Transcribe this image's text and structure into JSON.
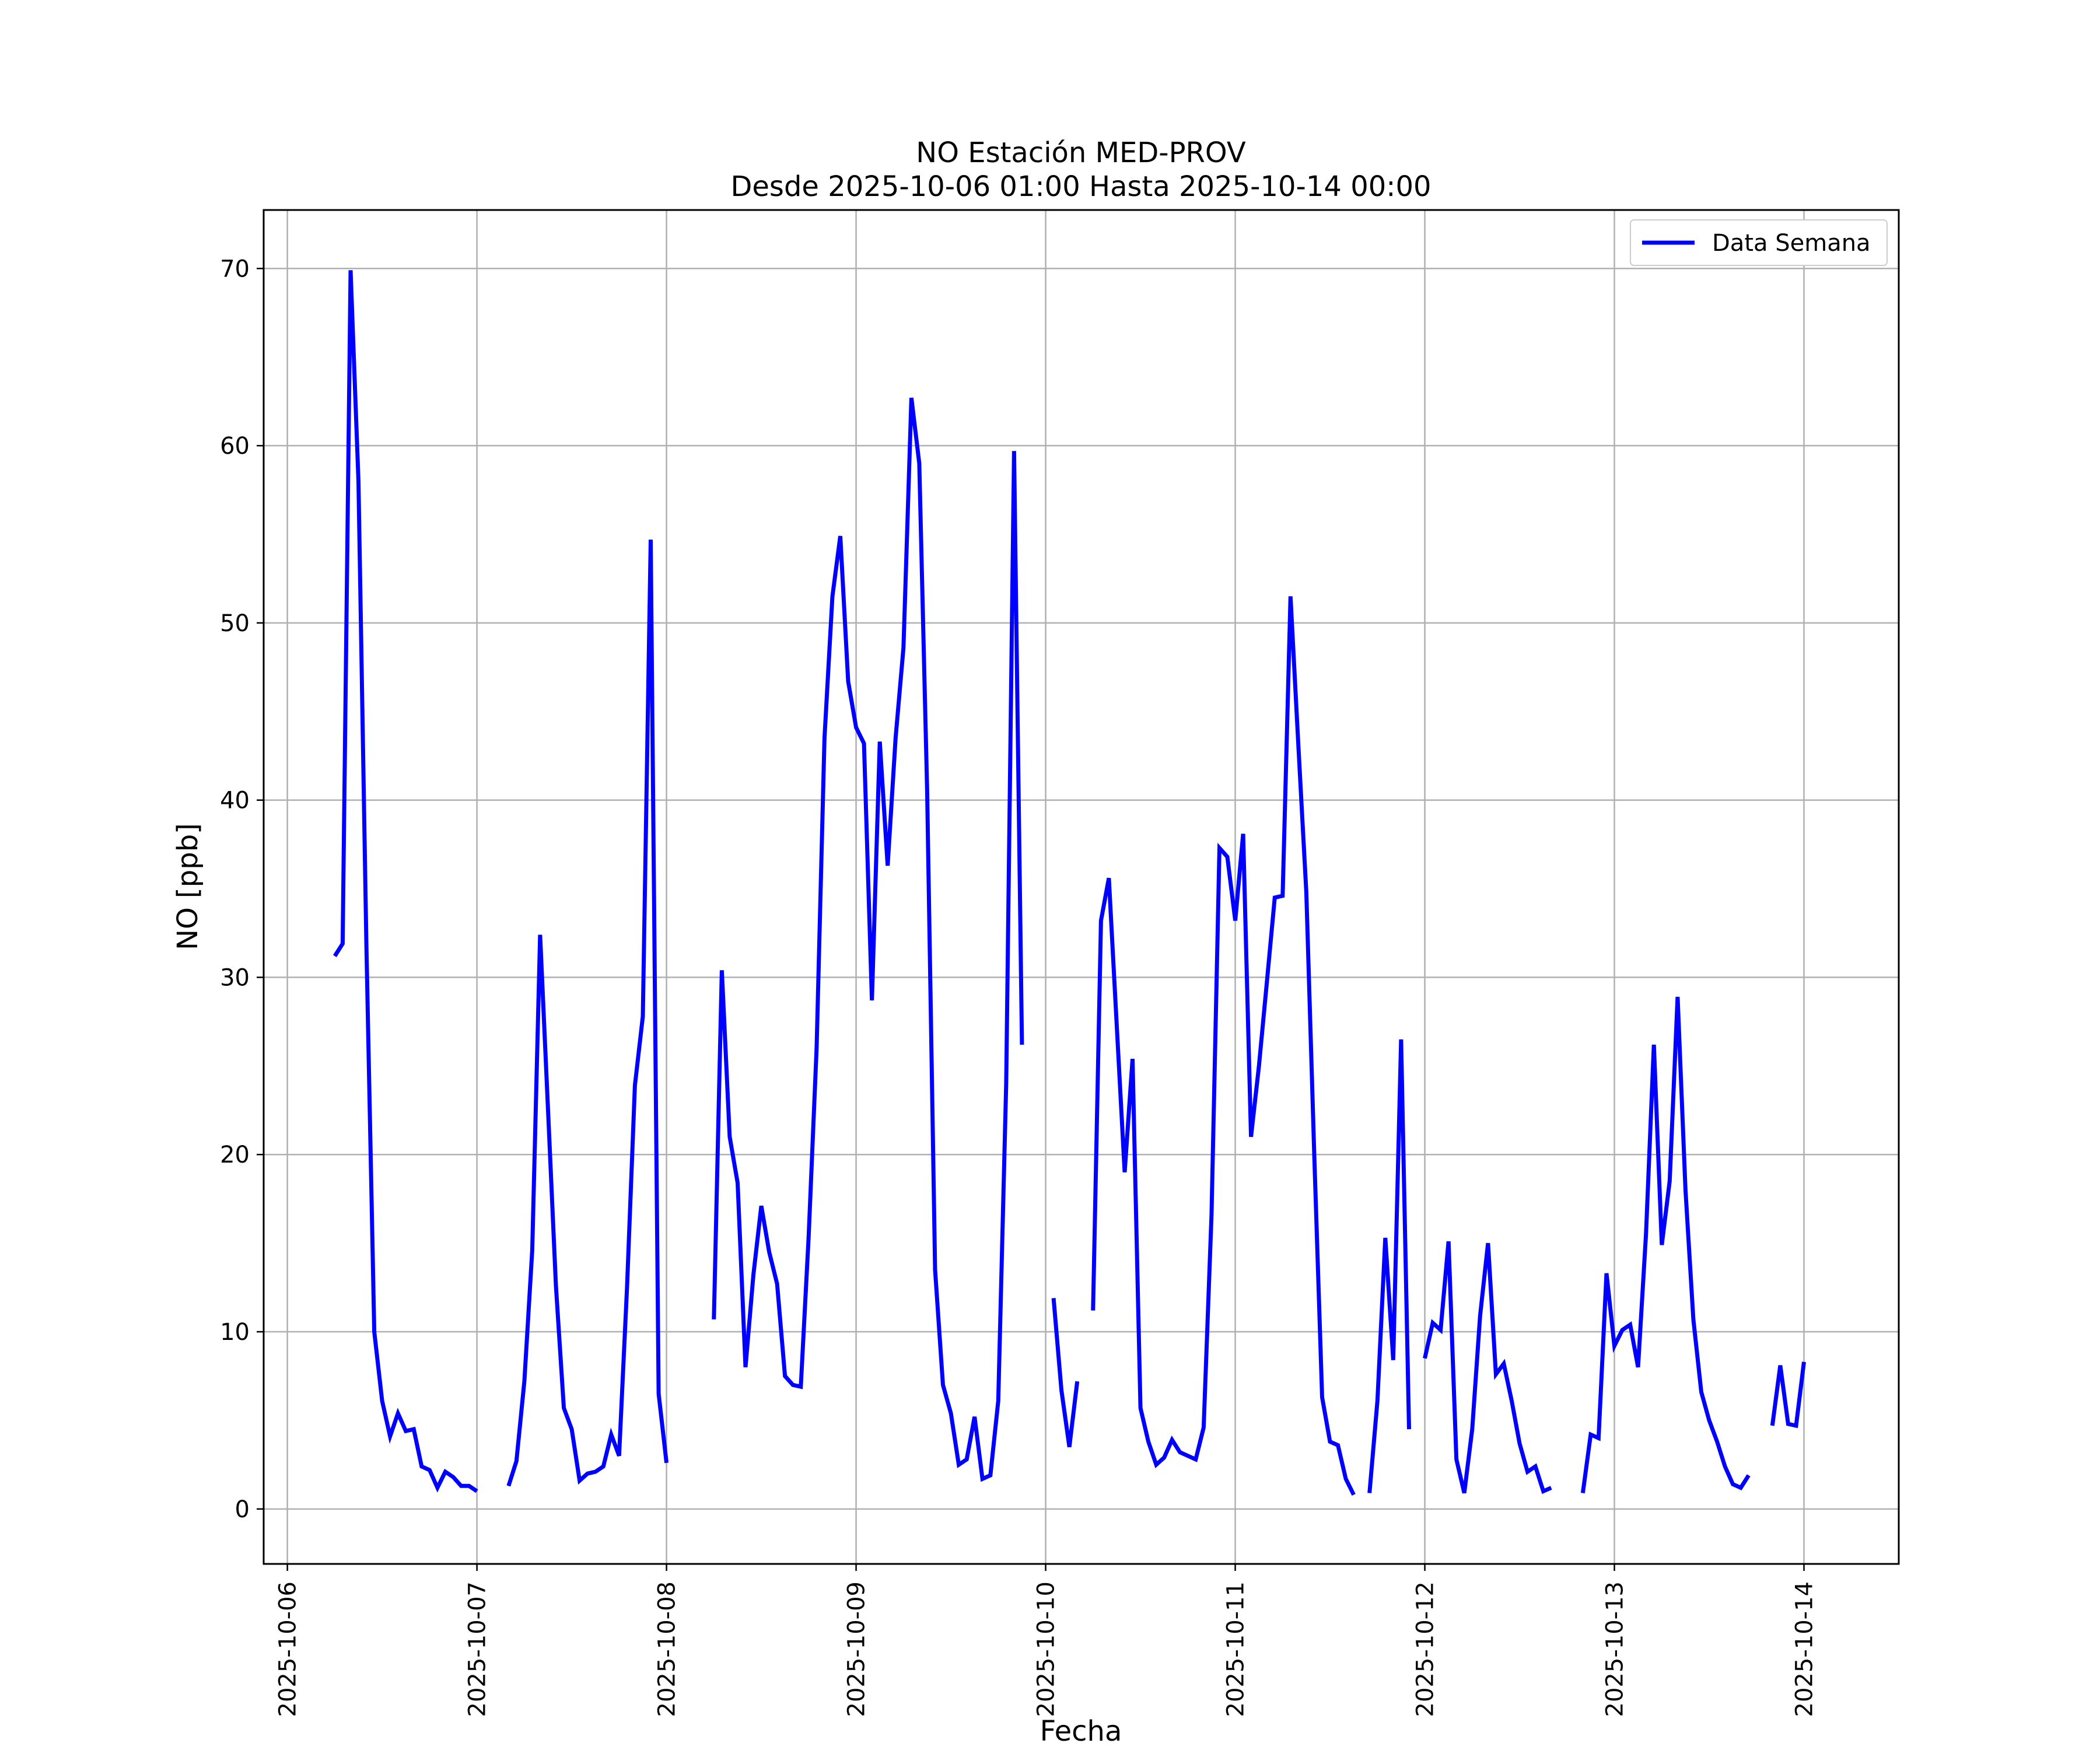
{
  "colors": {
    "series": "#0000ff",
    "grid": "#b0b0b0",
    "axes": "#000000",
    "background": "#ffffff"
  },
  "chart_data": {
    "type": "line",
    "title": "NO Estación MED-PROV",
    "subtitle": "Desde 2025-10-06 01:00 Hasta 2025-10-14 00:00",
    "xlabel": "Fecha",
    "ylabel": "NO [ppb]",
    "x_is_date": true,
    "xlim": [
      "2025-10-05 21:00",
      "2025-10-14 12:00"
    ],
    "ylim": [
      -3.1,
      73.3
    ],
    "x_ticks": [
      "2025-10-06",
      "2025-10-07",
      "2025-10-08",
      "2025-10-09",
      "2025-10-10",
      "2025-10-11",
      "2025-10-12",
      "2025-10-13",
      "2025-10-14"
    ],
    "y_ticks": [
      0,
      10,
      20,
      30,
      40,
      50,
      60,
      70
    ],
    "grid": true,
    "legend": {
      "position": "top-right",
      "entries": [
        "Data Semana"
      ]
    },
    "series": [
      {
        "name": "Data Semana",
        "segments": [
          [
            [
              "2025-10-06 06:00",
              31.2
            ],
            [
              "2025-10-06 07:00",
              31.9
            ],
            [
              "2025-10-06 08:00",
              69.9
            ],
            [
              "2025-10-06 09:00",
              58.0
            ],
            [
              "2025-10-06 10:00",
              32.0
            ],
            [
              "2025-10-06 11:00",
              10.0
            ],
            [
              "2025-10-06 12:00",
              6.1
            ],
            [
              "2025-10-06 13:00",
              4.1
            ],
            [
              "2025-10-06 14:00",
              5.4
            ],
            [
              "2025-10-06 15:00",
              4.4
            ],
            [
              "2025-10-06 16:00",
              4.5
            ],
            [
              "2025-10-06 17:00",
              2.4
            ],
            [
              "2025-10-06 18:00",
              2.2
            ],
            [
              "2025-10-06 19:00",
              1.2
            ],
            [
              "2025-10-06 20:00",
              2.1
            ],
            [
              "2025-10-06 21:00",
              1.8
            ],
            [
              "2025-10-06 22:00",
              1.3
            ],
            [
              "2025-10-06 23:00",
              1.3
            ],
            [
              "2025-10-07 00:00",
              1.0
            ]
          ],
          [
            [
              "2025-10-07 04:00",
              1.3
            ],
            [
              "2025-10-07 05:00",
              2.7
            ],
            [
              "2025-10-07 06:00",
              7.2
            ],
            [
              "2025-10-07 07:00",
              14.6
            ],
            [
              "2025-10-07 08:00",
              32.4
            ],
            [
              "2025-10-07 09:00",
              22.5
            ],
            [
              "2025-10-07 10:00",
              12.6
            ],
            [
              "2025-10-07 11:00",
              5.7
            ],
            [
              "2025-10-07 12:00",
              4.5
            ],
            [
              "2025-10-07 13:00",
              1.6
            ],
            [
              "2025-10-07 14:00",
              2.0
            ],
            [
              "2025-10-07 15:00",
              2.1
            ],
            [
              "2025-10-07 16:00",
              2.4
            ],
            [
              "2025-10-07 17:00",
              4.2
            ],
            [
              "2025-10-07 18:00",
              3.0
            ],
            [
              "2025-10-07 19:00",
              12.5
            ],
            [
              "2025-10-07 20:00",
              23.9
            ],
            [
              "2025-10-07 21:00",
              27.8
            ],
            [
              "2025-10-07 22:00",
              54.7
            ],
            [
              "2025-10-07 23:00",
              6.5
            ],
            [
              "2025-10-08 00:00",
              2.6
            ]
          ],
          [
            [
              "2025-10-08 06:00",
              10.7
            ],
            [
              "2025-10-08 07:00",
              30.4
            ],
            [
              "2025-10-08 08:00",
              21.0
            ],
            [
              "2025-10-08 09:00",
              18.4
            ],
            [
              "2025-10-08 10:00",
              8.0
            ],
            [
              "2025-10-08 11:00",
              13.2
            ],
            [
              "2025-10-08 12:00",
              17.1
            ],
            [
              "2025-10-08 13:00",
              14.5
            ],
            [
              "2025-10-08 14:00",
              12.7
            ],
            [
              "2025-10-08 15:00",
              7.5
            ],
            [
              "2025-10-08 16:00",
              7.0
            ],
            [
              "2025-10-08 17:00",
              6.9
            ],
            [
              "2025-10-08 18:00",
              15.4
            ],
            [
              "2025-10-08 19:00",
              26.0
            ],
            [
              "2025-10-08 20:00",
              43.5
            ],
            [
              "2025-10-08 21:00",
              51.5
            ],
            [
              "2025-10-08 22:00",
              54.9
            ],
            [
              "2025-10-08 23:00",
              46.7
            ],
            [
              "2025-10-09 00:00",
              44.1
            ],
            [
              "2025-10-09 01:00",
              43.2
            ],
            [
              "2025-10-09 02:00",
              28.7
            ],
            [
              "2025-10-09 03:00",
              43.3
            ],
            [
              "2025-10-09 04:00",
              36.3
            ],
            [
              "2025-10-09 05:00",
              43.5
            ],
            [
              "2025-10-09 06:00",
              48.6
            ],
            [
              "2025-10-09 07:00",
              62.7
            ],
            [
              "2025-10-09 08:00",
              59.0
            ],
            [
              "2025-10-09 09:00",
              40.5
            ],
            [
              "2025-10-09 10:00",
              13.5
            ],
            [
              "2025-10-09 11:00",
              7.0
            ],
            [
              "2025-10-09 12:00",
              5.4
            ],
            [
              "2025-10-09 13:00",
              2.5
            ],
            [
              "2025-10-09 14:00",
              2.8
            ],
            [
              "2025-10-09 15:00",
              5.2
            ],
            [
              "2025-10-09 16:00",
              1.7
            ],
            [
              "2025-10-09 17:00",
              1.9
            ],
            [
              "2025-10-09 18:00",
              6.1
            ],
            [
              "2025-10-09 19:00",
              24.0
            ],
            [
              "2025-10-09 20:00",
              59.7
            ],
            [
              "2025-10-09 21:00",
              26.2
            ]
          ],
          [
            [
              "2025-10-10 01:00",
              11.9
            ],
            [
              "2025-10-10 02:00",
              6.7
            ],
            [
              "2025-10-10 03:00",
              3.5
            ],
            [
              "2025-10-10 04:00",
              7.2
            ]
          ],
          [
            [
              "2025-10-10 06:00",
              11.2
            ],
            [
              "2025-10-10 07:00",
              33.2
            ],
            [
              "2025-10-10 08:00",
              35.6
            ],
            [
              "2025-10-10 09:00",
              27.3
            ],
            [
              "2025-10-10 10:00",
              19.0
            ],
            [
              "2025-10-10 11:00",
              25.4
            ],
            [
              "2025-10-10 12:00",
              5.7
            ],
            [
              "2025-10-10 13:00",
              3.8
            ],
            [
              "2025-10-10 14:00",
              2.5
            ],
            [
              "2025-10-10 15:00",
              2.9
            ],
            [
              "2025-10-10 16:00",
              3.9
            ],
            [
              "2025-10-10 17:00",
              3.2
            ],
            [
              "2025-10-10 18:00",
              3.0
            ],
            [
              "2025-10-10 19:00",
              2.8
            ],
            [
              "2025-10-10 20:00",
              4.6
            ],
            [
              "2025-10-10 21:00",
              16.6
            ],
            [
              "2025-10-10 22:00",
              37.3
            ],
            [
              "2025-10-10 23:00",
              36.8
            ],
            [
              "2025-10-11 00:00",
              33.2
            ],
            [
              "2025-10-11 01:00",
              38.1
            ],
            [
              "2025-10-11 02:00",
              21.0
            ],
            [
              "2025-10-11 03:00",
              25.0
            ],
            [
              "2025-10-11 04:00",
              29.7
            ],
            [
              "2025-10-11 05:00",
              34.5
            ],
            [
              "2025-10-11 06:00",
              34.6
            ],
            [
              "2025-10-11 07:00",
              51.5
            ],
            [
              "2025-10-11 08:00",
              43.0
            ],
            [
              "2025-10-11 09:00",
              34.8
            ],
            [
              "2025-10-11 10:00",
              20.0
            ],
            [
              "2025-10-11 11:00",
              6.3
            ],
            [
              "2025-10-11 12:00",
              3.8
            ],
            [
              "2025-10-11 13:00",
              3.6
            ],
            [
              "2025-10-11 14:00",
              1.7
            ],
            [
              "2025-10-11 15:00",
              0.8
            ]
          ],
          [
            [
              "2025-10-11 17:00",
              0.9
            ],
            [
              "2025-10-11 18:00",
              6.1
            ],
            [
              "2025-10-11 19:00",
              15.3
            ],
            [
              "2025-10-11 20:00",
              8.4
            ],
            [
              "2025-10-11 21:00",
              26.5
            ],
            [
              "2025-10-11 22:00",
              4.5
            ]
          ],
          [
            [
              "2025-10-12 00:00",
              8.5
            ],
            [
              "2025-10-12 01:00",
              10.5
            ],
            [
              "2025-10-12 02:00",
              10.1
            ],
            [
              "2025-10-12 03:00",
              15.1
            ],
            [
              "2025-10-12 04:00",
              2.8
            ],
            [
              "2025-10-12 05:00",
              0.9
            ],
            [
              "2025-10-12 06:00",
              4.5
            ],
            [
              "2025-10-12 07:00",
              10.9
            ],
            [
              "2025-10-12 08:00",
              15.0
            ],
            [
              "2025-10-12 09:00",
              7.6
            ],
            [
              "2025-10-12 10:00",
              8.2
            ],
            [
              "2025-10-12 11:00",
              6.1
            ],
            [
              "2025-10-12 12:00",
              3.7
            ],
            [
              "2025-10-12 13:00",
              2.1
            ],
            [
              "2025-10-12 14:00",
              2.4
            ],
            [
              "2025-10-12 15:00",
              1.0
            ],
            [
              "2025-10-12 16:00",
              1.2
            ]
          ],
          [
            [
              "2025-10-12 20:00",
              0.9
            ],
            [
              "2025-10-12 21:00",
              4.2
            ],
            [
              "2025-10-12 22:00",
              4.0
            ],
            [
              "2025-10-12 23:00",
              13.3
            ],
            [
              "2025-10-13 00:00",
              9.2
            ],
            [
              "2025-10-13 01:00",
              10.1
            ],
            [
              "2025-10-13 02:00",
              10.4
            ],
            [
              "2025-10-13 03:00",
              8.0
            ],
            [
              "2025-10-13 04:00",
              15.5
            ],
            [
              "2025-10-13 05:00",
              26.2
            ],
            [
              "2025-10-13 06:00",
              14.9
            ],
            [
              "2025-10-13 07:00",
              18.5
            ],
            [
              "2025-10-13 08:00",
              28.9
            ],
            [
              "2025-10-13 09:00",
              18.0
            ],
            [
              "2025-10-13 10:00",
              10.7
            ],
            [
              "2025-10-13 11:00",
              6.6
            ],
            [
              "2025-10-13 12:00",
              5.0
            ],
            [
              "2025-10-13 13:00",
              3.8
            ],
            [
              "2025-10-13 14:00",
              2.4
            ],
            [
              "2025-10-13 15:00",
              1.4
            ],
            [
              "2025-10-13 16:00",
              1.2
            ],
            [
              "2025-10-13 17:00",
              1.9
            ]
          ],
          [
            [
              "2025-10-13 20:00",
              4.7
            ],
            [
              "2025-10-13 21:00",
              8.1
            ],
            [
              "2025-10-13 22:00",
              4.8
            ],
            [
              "2025-10-13 23:00",
              4.7
            ],
            [
              "2025-10-14 00:00",
              8.3
            ]
          ]
        ]
      }
    ]
  }
}
